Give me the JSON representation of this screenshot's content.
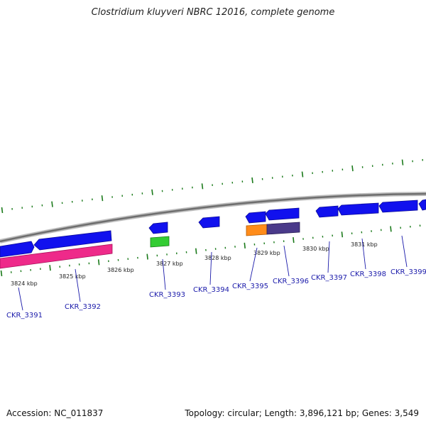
{
  "title": "Clostridium kluyveri NBRC 12016, complete genome",
  "footer": {
    "accession": "Accession: NC_011837",
    "stats": "Topology: circular; Length: 3,896,121 bp; Genes: 3,549"
  },
  "colors": {
    "backbone": "#7a7a7a",
    "tick": "#1a7a1a",
    "gene_blue": "#1111ee",
    "rna_pink": "#ee2a8a",
    "gene_green": "#33cc33",
    "gene_orange": "#ff8c1a",
    "gene_purple": "#4a3a8a",
    "label_blue": "#1a1aaa"
  },
  "ruler": {
    "kbp_labels": [
      "3824 kbp",
      "3825 kbp",
      "3826 kbp",
      "3827 kbp",
      "3828 kbp",
      "3829 kbp",
      "3830 kbp",
      "3831 kbp"
    ]
  },
  "genes": [
    {
      "id": "CKR_3391"
    },
    {
      "id": "CKR_3392"
    },
    {
      "id": "CKR_3393"
    },
    {
      "id": "CKR_3394"
    },
    {
      "id": "CKR_3395"
    },
    {
      "id": "CKR_3396"
    },
    {
      "id": "CKR_3397"
    },
    {
      "id": "CKR_3398"
    },
    {
      "id": "CKR_3399"
    }
  ]
}
